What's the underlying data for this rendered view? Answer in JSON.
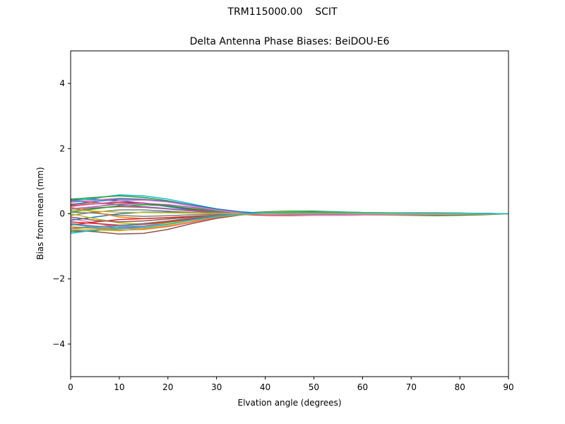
{
  "figure": {
    "suptitle": "TRM115000.00    SCIT"
  },
  "chart_data": {
    "type": "line",
    "title": "Delta Antenna Phase Biases: BeiDOU-E6",
    "xlabel": "Elvation angle (degrees)",
    "ylabel": "Bias from mean (mm)",
    "xlim": [
      0,
      90
    ],
    "ylim": [
      -5,
      5
    ],
    "xticks": [
      0,
      10,
      20,
      30,
      40,
      50,
      60,
      70,
      80,
      90
    ],
    "yticks": [
      -4,
      -2,
      0,
      2,
      4
    ],
    "xtick_labels": [
      "0",
      "10",
      "20",
      "30",
      "40",
      "50",
      "60",
      "70",
      "80",
      "90"
    ],
    "ytick_labels": [
      "−4",
      "−2",
      "0",
      "2",
      "4"
    ],
    "grid": false,
    "x": [
      0,
      5,
      10,
      15,
      20,
      25,
      30,
      35,
      40,
      45,
      50,
      55,
      60,
      65,
      70,
      75,
      80,
      85,
      90
    ],
    "series": [
      {
        "color": "#1f77b4",
        "values": [
          0.42,
          0.45,
          0.4,
          0.32,
          0.22,
          0.12,
          0.05,
          0.0,
          -0.03,
          -0.04,
          -0.04,
          -0.03,
          -0.02,
          -0.02,
          -0.02,
          -0.02,
          -0.02,
          -0.01,
          0.0
        ]
      },
      {
        "color": "#ff7f0e",
        "values": [
          0.3,
          0.32,
          0.28,
          0.22,
          0.15,
          0.08,
          0.03,
          0.0,
          -0.02,
          -0.03,
          -0.03,
          -0.03,
          -0.02,
          -0.02,
          -0.01,
          -0.01,
          -0.01,
          0.0,
          0.0
        ]
      },
      {
        "color": "#2ca02c",
        "values": [
          -0.55,
          -0.52,
          -0.45,
          -0.38,
          -0.28,
          -0.16,
          -0.06,
          0.02,
          0.06,
          0.08,
          0.08,
          0.06,
          0.04,
          0.02,
          0.02,
          0.02,
          0.02,
          0.01,
          0.0
        ]
      },
      {
        "color": "#d62728",
        "values": [
          0.25,
          0.3,
          0.35,
          0.33,
          0.25,
          0.14,
          0.05,
          -0.02,
          -0.05,
          -0.06,
          -0.05,
          -0.04,
          -0.03,
          -0.02,
          -0.02,
          -0.02,
          -0.02,
          -0.01,
          0.0
        ]
      },
      {
        "color": "#9467bd",
        "values": [
          -0.3,
          -0.38,
          -0.42,
          -0.38,
          -0.28,
          -0.16,
          -0.06,
          0.01,
          0.05,
          0.06,
          0.06,
          0.05,
          0.03,
          0.02,
          0.02,
          0.02,
          0.02,
          0.01,
          0.0
        ]
      },
      {
        "color": "#8c564b",
        "values": [
          0.1,
          0.18,
          0.22,
          0.2,
          0.15,
          0.09,
          0.03,
          -0.01,
          -0.03,
          -0.04,
          -0.04,
          -0.03,
          -0.02,
          -0.02,
          -0.02,
          -0.01,
          -0.01,
          0.0,
          0.0
        ]
      },
      {
        "color": "#e377c2",
        "values": [
          -0.15,
          -0.28,
          -0.42,
          -0.48,
          -0.4,
          -0.26,
          -0.12,
          -0.03,
          0.02,
          0.04,
          0.04,
          0.04,
          0.03,
          0.02,
          0.02,
          0.02,
          0.02,
          0.01,
          0.0
        ]
      },
      {
        "color": "#7f7f7f",
        "values": [
          0.05,
          0.02,
          -0.05,
          -0.08,
          -0.06,
          -0.03,
          -0.01,
          0.0,
          0.01,
          0.01,
          0.01,
          0.01,
          0.0,
          0.0,
          0.0,
          0.0,
          0.0,
          0.0,
          0.0
        ]
      },
      {
        "color": "#bcbd22",
        "values": [
          -0.45,
          -0.5,
          -0.52,
          -0.45,
          -0.34,
          -0.2,
          -0.08,
          0.0,
          0.04,
          0.06,
          0.06,
          0.05,
          0.03,
          0.02,
          0.02,
          0.02,
          0.01,
          0.01,
          0.0
        ]
      },
      {
        "color": "#17becf",
        "values": [
          0.38,
          0.48,
          0.58,
          0.55,
          0.45,
          0.3,
          0.15,
          0.05,
          -0.01,
          -0.03,
          -0.04,
          -0.04,
          -0.03,
          -0.02,
          -0.02,
          -0.02,
          -0.02,
          -0.01,
          0.0
        ]
      },
      {
        "color": "#1f77b4",
        "values": [
          -0.2,
          -0.1,
          0.0,
          0.05,
          0.05,
          0.03,
          0.01,
          0.0,
          0.0,
          0.0,
          0.0,
          0.0,
          0.0,
          0.0,
          0.0,
          0.0,
          0.0,
          0.0,
          0.0
        ]
      },
      {
        "color": "#ff7f0e",
        "values": [
          0.2,
          0.05,
          -0.1,
          -0.15,
          -0.12,
          -0.08,
          -0.04,
          -0.02,
          0.0,
          0.01,
          0.01,
          0.01,
          0.01,
          0.0,
          0.0,
          0.0,
          0.0,
          0.0,
          0.0
        ]
      },
      {
        "color": "#2ca02c",
        "values": [
          0.45,
          0.5,
          0.55,
          0.5,
          0.4,
          0.26,
          0.12,
          0.03,
          -0.02,
          -0.04,
          -0.05,
          -0.05,
          -0.04,
          -0.04,
          -0.05,
          -0.06,
          -0.05,
          -0.03,
          0.0
        ]
      },
      {
        "color": "#d62728",
        "values": [
          -0.35,
          -0.25,
          -0.18,
          -0.15,
          -0.12,
          -0.08,
          -0.05,
          -0.02,
          0.0,
          0.01,
          0.02,
          0.02,
          0.02,
          0.02,
          0.02,
          0.01,
          0.01,
          0.0,
          0.0
        ]
      },
      {
        "color": "#9467bd",
        "values": [
          0.15,
          0.22,
          0.3,
          0.32,
          0.28,
          0.2,
          0.1,
          0.03,
          -0.01,
          -0.03,
          -0.03,
          -0.03,
          -0.02,
          -0.02,
          -0.02,
          -0.01,
          -0.01,
          0.0,
          0.0
        ]
      },
      {
        "color": "#8c564b",
        "values": [
          -0.5,
          -0.55,
          -0.62,
          -0.6,
          -0.48,
          -0.3,
          -0.14,
          -0.04,
          0.02,
          0.05,
          0.06,
          0.05,
          0.04,
          0.03,
          0.03,
          0.03,
          0.02,
          0.01,
          0.0
        ]
      },
      {
        "color": "#e377c2",
        "values": [
          0.35,
          0.42,
          0.48,
          0.45,
          0.36,
          0.24,
          0.12,
          0.04,
          0.0,
          -0.02,
          -0.03,
          -0.03,
          -0.02,
          -0.02,
          -0.02,
          -0.02,
          -0.01,
          -0.01,
          0.0
        ]
      },
      {
        "color": "#7f7f7f",
        "values": [
          -0.05,
          0.05,
          0.12,
          0.12,
          0.08,
          0.04,
          0.01,
          0.0,
          -0.01,
          -0.01,
          -0.01,
          0.0,
          0.0,
          0.0,
          0.0,
          0.0,
          0.0,
          0.0,
          0.0
        ]
      },
      {
        "color": "#bcbd22",
        "values": [
          0.0,
          -0.15,
          -0.28,
          -0.32,
          -0.28,
          -0.2,
          -0.1,
          -0.03,
          0.01,
          0.03,
          0.03,
          0.03,
          0.02,
          0.02,
          0.02,
          0.01,
          0.01,
          0.0,
          0.0
        ]
      },
      {
        "color": "#17becf",
        "values": [
          -0.6,
          -0.5,
          -0.4,
          -0.32,
          -0.24,
          -0.15,
          -0.07,
          -0.01,
          0.03,
          0.05,
          0.05,
          0.04,
          0.03,
          0.02,
          0.01,
          0.0,
          0.0,
          0.0,
          0.0
        ]
      },
      {
        "color": "#1f77b4",
        "values": [
          0.28,
          0.38,
          0.45,
          0.44,
          0.38,
          0.27,
          0.15,
          0.06,
          0.01,
          -0.02,
          -0.03,
          -0.03,
          -0.03,
          -0.02,
          -0.02,
          -0.02,
          -0.02,
          -0.01,
          0.0
        ]
      },
      {
        "color": "#ff7f0e",
        "values": [
          -0.4,
          -0.45,
          -0.5,
          -0.48,
          -0.38,
          -0.24,
          -0.1,
          -0.02,
          0.03,
          0.05,
          0.05,
          0.04,
          0.03,
          0.02,
          0.02,
          0.02,
          0.01,
          0.01,
          0.0
        ]
      },
      {
        "color": "#2ca02c",
        "values": [
          0.05,
          0.15,
          0.25,
          0.28,
          0.24,
          0.16,
          0.08,
          0.02,
          -0.01,
          -0.02,
          -0.03,
          -0.02,
          -0.02,
          -0.02,
          -0.01,
          -0.01,
          -0.01,
          0.0,
          0.0
        ]
      },
      {
        "color": "#d62728",
        "values": [
          -0.25,
          -0.3,
          -0.35,
          -0.32,
          -0.25,
          -0.15,
          -0.06,
          0.0,
          0.03,
          0.04,
          0.04,
          0.04,
          0.03,
          0.02,
          0.02,
          0.01,
          0.01,
          0.0,
          0.0
        ]
      },
      {
        "color": "#9467bd",
        "values": [
          0.4,
          0.35,
          0.28,
          0.22,
          0.16,
          0.1,
          0.05,
          0.02,
          0.0,
          -0.01,
          -0.02,
          -0.02,
          -0.02,
          -0.01,
          -0.01,
          -0.01,
          -0.01,
          0.0,
          0.0
        ]
      },
      {
        "color": "#8c564b",
        "values": [
          -0.1,
          -0.2,
          -0.25,
          -0.22,
          -0.16,
          -0.1,
          -0.04,
          0.0,
          0.02,
          0.03,
          0.03,
          0.03,
          0.02,
          0.02,
          0.01,
          0.01,
          0.01,
          0.0,
          0.0
        ]
      },
      {
        "color": "#e377c2",
        "values": [
          0.22,
          0.3,
          0.4,
          0.42,
          0.36,
          0.24,
          0.11,
          0.02,
          -0.03,
          -0.05,
          -0.05,
          -0.05,
          -0.04,
          -0.03,
          -0.03,
          -0.03,
          -0.02,
          -0.01,
          0.0
        ]
      },
      {
        "color": "#7f7f7f",
        "values": [
          -0.45,
          -0.4,
          -0.36,
          -0.3,
          -0.22,
          -0.13,
          -0.05,
          0.0,
          0.03,
          0.04,
          0.04,
          0.04,
          0.03,
          0.02,
          0.02,
          0.01,
          0.01,
          0.0,
          0.0
        ]
      },
      {
        "color": "#bcbd22",
        "values": [
          0.12,
          0.08,
          0.05,
          0.04,
          0.03,
          0.02,
          0.01,
          0.0,
          0.0,
          0.0,
          0.0,
          0.0,
          0.0,
          0.0,
          0.0,
          0.0,
          0.0,
          0.0,
          0.0
        ]
      },
      {
        "color": "#17becf",
        "values": [
          -0.32,
          -0.42,
          -0.46,
          -0.42,
          -0.32,
          -0.19,
          -0.08,
          -0.01,
          0.03,
          0.05,
          0.05,
          0.05,
          0.04,
          0.03,
          0.02,
          0.02,
          0.02,
          0.01,
          0.0
        ]
      }
    ]
  }
}
